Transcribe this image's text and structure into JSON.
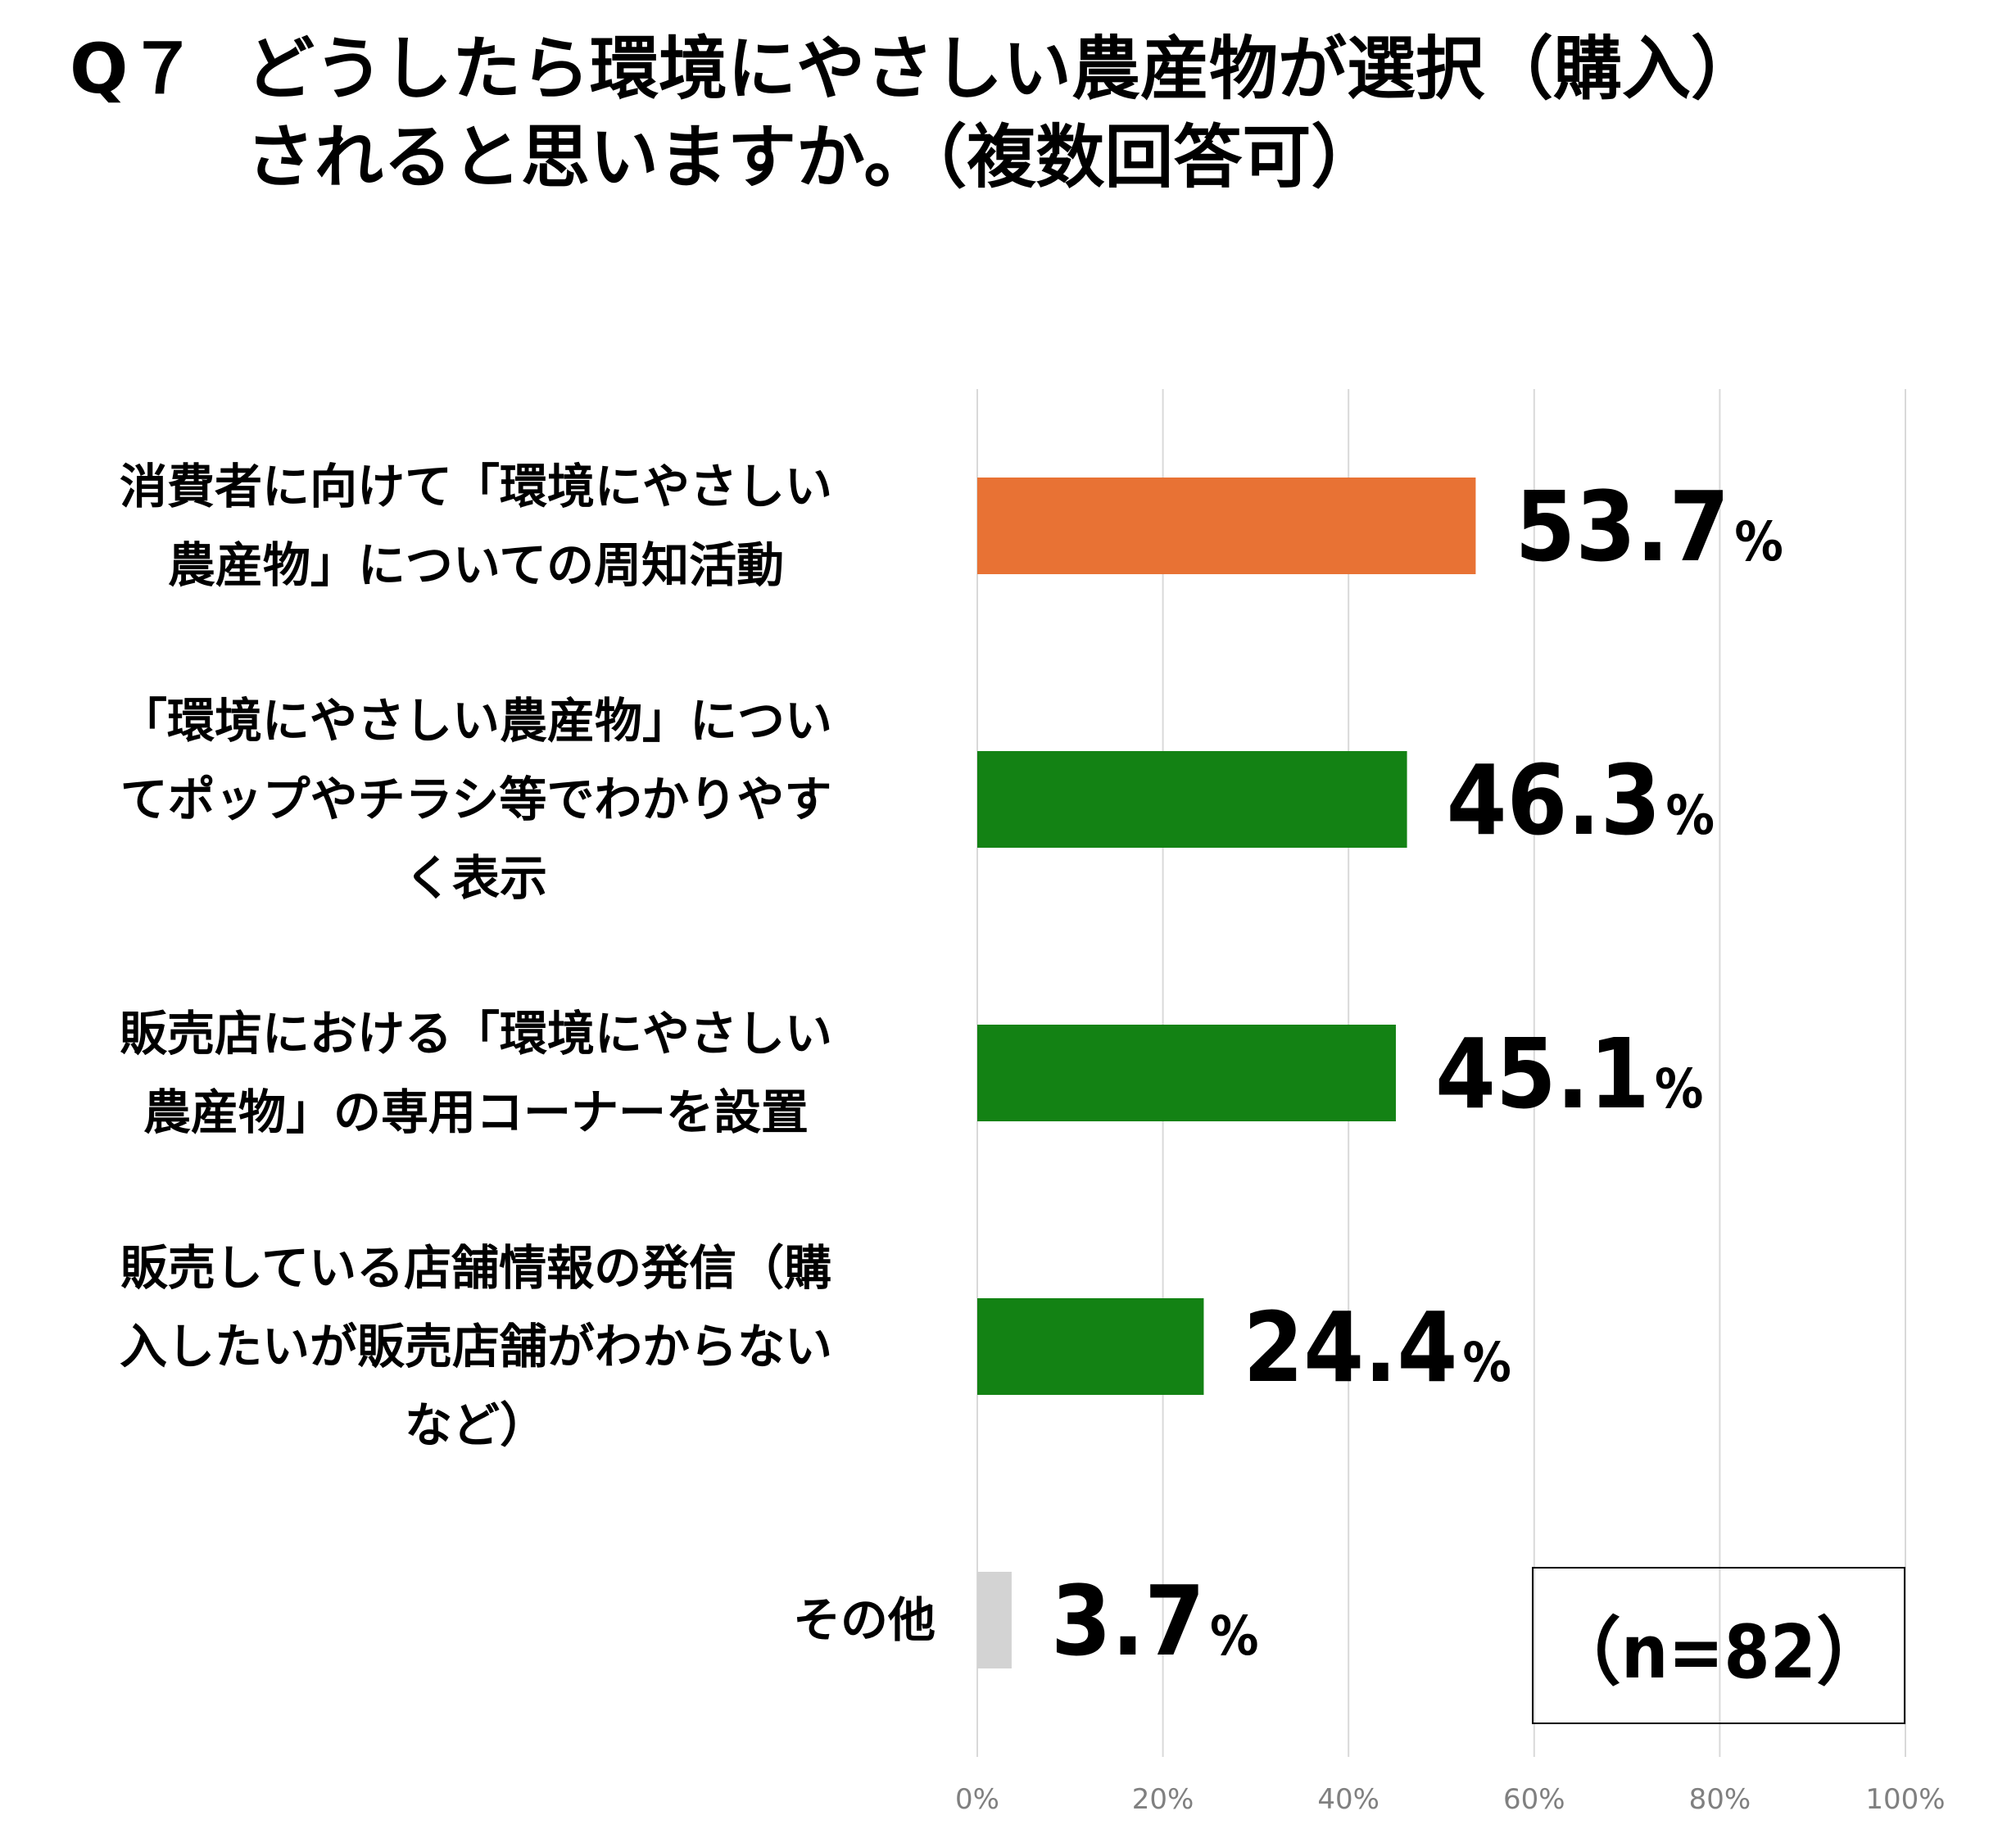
{
  "title": {
    "question_number": "Q７",
    "line1": "どうしたら環境にやさしい農産物が選択（購入）",
    "line2": "されると思いますか。（複数回答可）"
  },
  "sample_note": "（n=82）",
  "chart_data": {
    "type": "bar",
    "orientation": "horizontal",
    "categories": [
      [
        "消費者に向けて「環境にやさしい",
        "農産物」についての周知活動"
      ],
      [
        "「環境にやさしい農産物」につい",
        "てポップやチラシ等でわかりやす",
        "く表示"
      ],
      [
        "販売店における「環境にやさしい",
        "農産物」の専用コーナーを設置"
      ],
      [
        "販売している店舗情報の発信（購",
        "入したいが販売店舗がわからない",
        "など）"
      ],
      [
        "その他"
      ]
    ],
    "values": [
      53.7,
      46.3,
      45.1,
      24.4,
      3.7
    ],
    "value_labels": [
      "53.7",
      "46.3",
      "45.1",
      "24.4",
      "3.7"
    ],
    "value_unit": "%",
    "colors": [
      "#e87234",
      "#138214",
      "#138214",
      "#138214",
      "#d3d3d3"
    ],
    "xlim": [
      0,
      100
    ],
    "xticks": [
      "0%",
      "20%",
      "40%",
      "60%",
      "80%",
      "100%"
    ],
    "xtick_values": [
      0,
      20,
      40,
      60,
      80,
      100
    ],
    "grid": true,
    "legend": "none"
  }
}
